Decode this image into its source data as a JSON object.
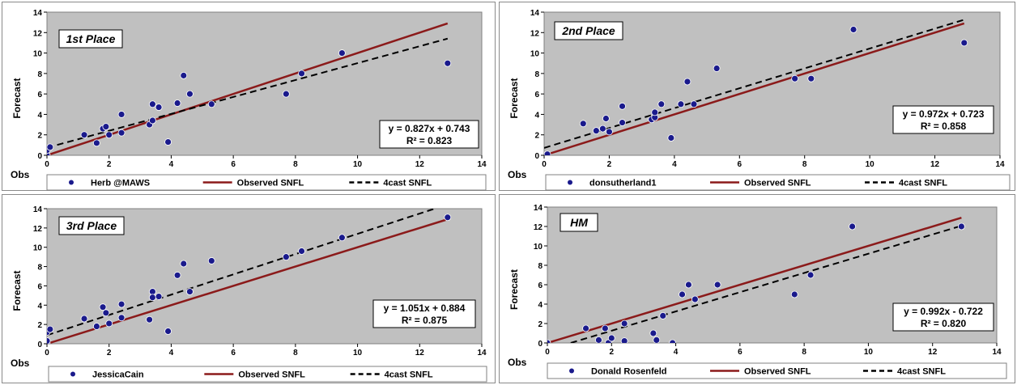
{
  "chart_data": [
    {
      "type": "scatter",
      "title": "1st Place",
      "xlabel": "Obs",
      "ylabel": "Forecast",
      "xlim": [
        0,
        14
      ],
      "ylim": [
        0,
        14
      ],
      "x_ticks": [
        "0",
        "2",
        "4",
        "6",
        "8",
        "10",
        "12",
        "14"
      ],
      "y_ticks": [
        "0",
        "2",
        "4",
        "6",
        "8",
        "10",
        "12",
        "14"
      ],
      "grid": false,
      "background": "#c0c0c0",
      "equation": "y = 0.827x + 0.743",
      "r2": "R² = 0.823",
      "legend": {
        "placement": "bottom",
        "entries": [
          "Herb @MAWS",
          "Observed SNFL",
          "4cast SNFL"
        ]
      },
      "series": [
        {
          "name": "Herb @MAWS",
          "kind": "points",
          "color": "#1a1a8c",
          "points": [
            [
              0,
              0
            ],
            [
              0,
              0.5
            ],
            [
              0.1,
              0.8
            ],
            [
              1.2,
              2
            ],
            [
              1.6,
              1.2
            ],
            [
              1.8,
              2.6
            ],
            [
              1.9,
              2.8
            ],
            [
              2,
              2
            ],
            [
              2.4,
              4
            ],
            [
              2.4,
              2.2
            ],
            [
              3.3,
              3
            ],
            [
              3.4,
              5
            ],
            [
              3.4,
              3.4
            ],
            [
              3.6,
              4.7
            ],
            [
              3.9,
              1.3
            ],
            [
              4.2,
              5.1
            ],
            [
              4.4,
              7.8
            ],
            [
              4.6,
              6
            ],
            [
              5.3,
              5
            ],
            [
              7.7,
              6
            ],
            [
              8.2,
              8
            ],
            [
              9.5,
              10
            ],
            [
              12.9,
              9
            ]
          ]
        },
        {
          "name": "Observed SNFL",
          "kind": "line",
          "color": "#8b1a1a",
          "dash": false,
          "x": [
            0,
            12.9
          ],
          "y": [
            0,
            12.9
          ]
        },
        {
          "name": "4cast SNFL",
          "kind": "line",
          "color": "#000000",
          "dash": true,
          "x": [
            0,
            12.9
          ],
          "y": [
            0.743,
            11.41
          ]
        }
      ]
    },
    {
      "type": "scatter",
      "title": "2nd Place",
      "xlabel": "Obs",
      "ylabel": "Forecast",
      "xlim": [
        0,
        14
      ],
      "ylim": [
        0,
        14
      ],
      "x_ticks": [
        "0",
        "2",
        "4",
        "6",
        "8",
        "10",
        "12",
        "14"
      ],
      "y_ticks": [
        "0",
        "2",
        "4",
        "6",
        "8",
        "10",
        "12",
        "14"
      ],
      "grid": false,
      "background": "#c0c0c0",
      "equation": "y = 0.972x + 0.723",
      "r2": "R² = 0.858",
      "legend": {
        "placement": "bottom",
        "entries": [
          "donsutherland1",
          "Observed SNFL",
          "4cast SNFL"
        ]
      },
      "series": [
        {
          "name": "donsutherland1",
          "kind": "points",
          "color": "#1a1a8c",
          "points": [
            [
              0,
              0
            ],
            [
              0.1,
              0.1
            ],
            [
              1.2,
              3.1
            ],
            [
              1.6,
              2.4
            ],
            [
              1.8,
              2.6
            ],
            [
              1.9,
              3.6
            ],
            [
              2,
              2.3
            ],
            [
              2.4,
              4.8
            ],
            [
              2.4,
              3.2
            ],
            [
              3.3,
              3.5
            ],
            [
              3.4,
              3.7
            ],
            [
              3.4,
              4.2
            ],
            [
              3.6,
              5
            ],
            [
              3.9,
              1.7
            ],
            [
              4.2,
              5
            ],
            [
              4.4,
              7.2
            ],
            [
              4.6,
              5
            ],
            [
              5.3,
              8.5
            ],
            [
              7.7,
              7.5
            ],
            [
              8.2,
              7.5
            ],
            [
              9.5,
              12.3
            ],
            [
              12.9,
              11
            ]
          ]
        },
        {
          "name": "Observed SNFL",
          "kind": "line",
          "color": "#8b1a1a",
          "dash": false,
          "x": [
            0,
            12.9
          ],
          "y": [
            0,
            12.9
          ]
        },
        {
          "name": "4cast SNFL",
          "kind": "line",
          "color": "#000000",
          "dash": true,
          "x": [
            0,
            12.9
          ],
          "y": [
            0.723,
            13.26
          ]
        }
      ]
    },
    {
      "type": "scatter",
      "title": "3rd Place",
      "xlabel": "Obs",
      "ylabel": "Forecast",
      "xlim": [
        0,
        14
      ],
      "ylim": [
        0,
        14
      ],
      "x_ticks": [
        "0",
        "2",
        "4",
        "6",
        "8",
        "10",
        "12",
        "14"
      ],
      "y_ticks": [
        "0",
        "2",
        "4",
        "6",
        "8",
        "10",
        "12",
        "14"
      ],
      "grid": false,
      "background": "#c0c0c0",
      "equation": "y = 1.051x + 0.884",
      "r2": "R² = 0.875",
      "legend": {
        "placement": "bottom",
        "entries": [
          "JessicaCain",
          "Observed SNFL",
          "4cast SNFL"
        ]
      },
      "series": [
        {
          "name": "JessicaCain",
          "kind": "points",
          "color": "#1a1a8c",
          "points": [
            [
              0,
              0
            ],
            [
              0,
              0.3
            ],
            [
              0,
              1.2
            ],
            [
              0.1,
              1.5
            ],
            [
              1.2,
              2.6
            ],
            [
              1.6,
              1.8
            ],
            [
              1.8,
              3.8
            ],
            [
              1.9,
              3.2
            ],
            [
              2,
              2.1
            ],
            [
              2.4,
              4.1
            ],
            [
              2.4,
              2.7
            ],
            [
              3.3,
              2.5
            ],
            [
              3.4,
              5.4
            ],
            [
              3.4,
              4.8
            ],
            [
              3.6,
              4.9
            ],
            [
              3.9,
              1.3
            ],
            [
              4.2,
              7.1
            ],
            [
              4.4,
              8.3
            ],
            [
              4.6,
              5.4
            ],
            [
              5.3,
              8.6
            ],
            [
              7.7,
              9
            ],
            [
              8.2,
              9.6
            ],
            [
              9.5,
              11
            ],
            [
              12.9,
              13.1
            ]
          ]
        },
        {
          "name": "Observed SNFL",
          "kind": "line",
          "color": "#8b1a1a",
          "dash": false,
          "x": [
            0,
            12.9
          ],
          "y": [
            0,
            12.9
          ]
        },
        {
          "name": "4cast SNFL",
          "kind": "line",
          "color": "#000000",
          "dash": true,
          "x": [
            0,
            12.9
          ],
          "y": [
            0.884,
            14.44
          ]
        }
      ]
    },
    {
      "type": "scatter",
      "title": "HM",
      "xlabel": "Obs",
      "ylabel": "Forecast",
      "xlim": [
        0,
        14
      ],
      "ylim": [
        0,
        14
      ],
      "x_ticks": [
        "0",
        "2",
        "4",
        "6",
        "8",
        "10",
        "12",
        "14"
      ],
      "y_ticks": [
        "0",
        "2",
        "4",
        "6",
        "8",
        "10",
        "12",
        "14"
      ],
      "grid": false,
      "background": "#c0c0c0",
      "equation": "y = 0.992x - 0.722",
      "r2": "R² = 0.820",
      "legend": {
        "placement": "bottom",
        "entries": [
          "Donald Rosenfeld",
          "Observed SNFL",
          "4cast SNFL"
        ]
      },
      "series": [
        {
          "name": "Donald Rosenfeld",
          "kind": "points",
          "color": "#1a1a8c",
          "points": [
            [
              0,
              0
            ],
            [
              1.2,
              1.5
            ],
            [
              1.6,
              0.3
            ],
            [
              1.8,
              1.5
            ],
            [
              1.9,
              0
            ],
            [
              2,
              0.5
            ],
            [
              2.4,
              2
            ],
            [
              2.4,
              0.2
            ],
            [
              3.3,
              1
            ],
            [
              3.4,
              0.3
            ],
            [
              3.6,
              2.8
            ],
            [
              3.9,
              0
            ],
            [
              4.2,
              5
            ],
            [
              4.4,
              6
            ],
            [
              4.6,
              4.5
            ],
            [
              5.3,
              6
            ],
            [
              7.7,
              5
            ],
            [
              8.2,
              7
            ],
            [
              9.5,
              12
            ],
            [
              12.9,
              12
            ]
          ]
        },
        {
          "name": "Observed SNFL",
          "kind": "line",
          "color": "#8b1a1a",
          "dash": false,
          "x": [
            0,
            12.9
          ],
          "y": [
            0,
            12.9
          ]
        },
        {
          "name": "4cast SNFL",
          "kind": "line",
          "color": "#000000",
          "dash": true,
          "x": [
            0.728,
            12.9
          ],
          "y": [
            0,
            12.07
          ]
        }
      ]
    }
  ]
}
